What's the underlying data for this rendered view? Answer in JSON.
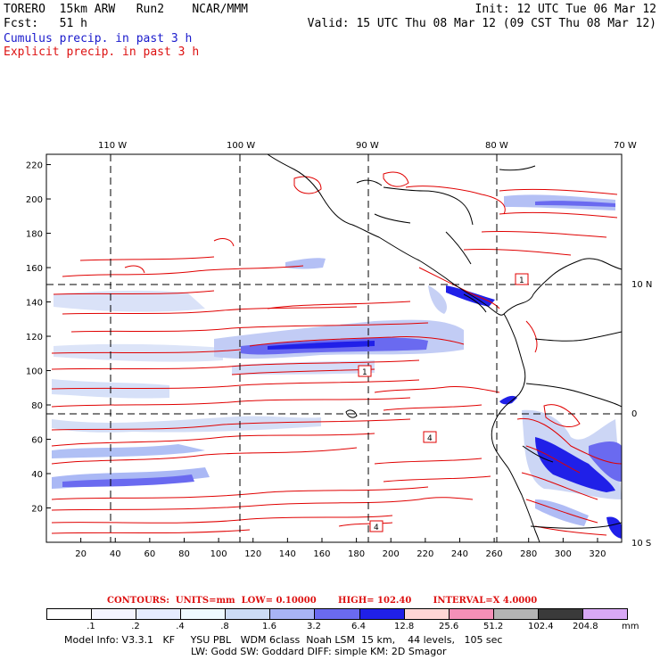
{
  "header": {
    "model": "TORERO",
    "resolution": "15km ARW",
    "run": "Run2",
    "center": "NCAR/MMM",
    "init": "Init: 12 UTC Tue 06 Mar 12",
    "fcst_label": "Fcst:",
    "fcst_value": "51 h",
    "valid": "Valid: 15 UTC Thu 08 Mar 12 (09 CST Thu 08 Mar 12)",
    "legend_cumulus": "Cumulus precip. in past 3 h",
    "legend_explicit": "Explicit precip. in past 3 h"
  },
  "map": {
    "lon_labels": [
      "110 W",
      "100 W",
      "90 W",
      "80 W",
      "70 W"
    ],
    "lat_labels": [
      "10 N",
      "0",
      "10 S"
    ],
    "x_ticks": [
      "20",
      "40",
      "60",
      "80",
      "100",
      "120",
      "140",
      "160",
      "180",
      "200",
      "220",
      "240",
      "260",
      "280",
      "300",
      "320"
    ],
    "y_ticks": [
      "220",
      "200",
      "180",
      "160",
      "140",
      "120",
      "100",
      "80",
      "60",
      "40",
      "20"
    ],
    "contour_labels": [
      "1",
      "1",
      "4",
      "4"
    ]
  },
  "contours_line": {
    "label": "CONTOURS:",
    "units": "UNITS=mm",
    "low": "LOW= 0.10000",
    "high": "HIGH= 102.40",
    "interval": "INTERVAL=X 4.0000"
  },
  "colorbar": {
    "labels": [
      ".1",
      ".2",
      ".4",
      ".8",
      "1.6",
      "3.2",
      "6.4",
      "12.8",
      "25.6",
      "51.2",
      "102.4",
      "204.8"
    ],
    "unit": "mm",
    "colors": [
      "#ffffff",
      "#f4f4ff",
      "#e6ecff",
      "#eefaff",
      "#ccdcf5",
      "#a8b4f5",
      "#6a6af0",
      "#2020e8",
      "#ffd6d6",
      "#f590b8",
      "#b4b4b4",
      "#3a3a3a",
      "#d8a8f5"
    ]
  },
  "model_info": {
    "line1": "Model Info: V3.3.1   KF     YSU PBL   WDM 6class  Noah LSM  15 km,    44 levels,   105 sec",
    "line2": "LW: Godd SW: Goddard DIFF: simple KM: 2D Smagor"
  }
}
